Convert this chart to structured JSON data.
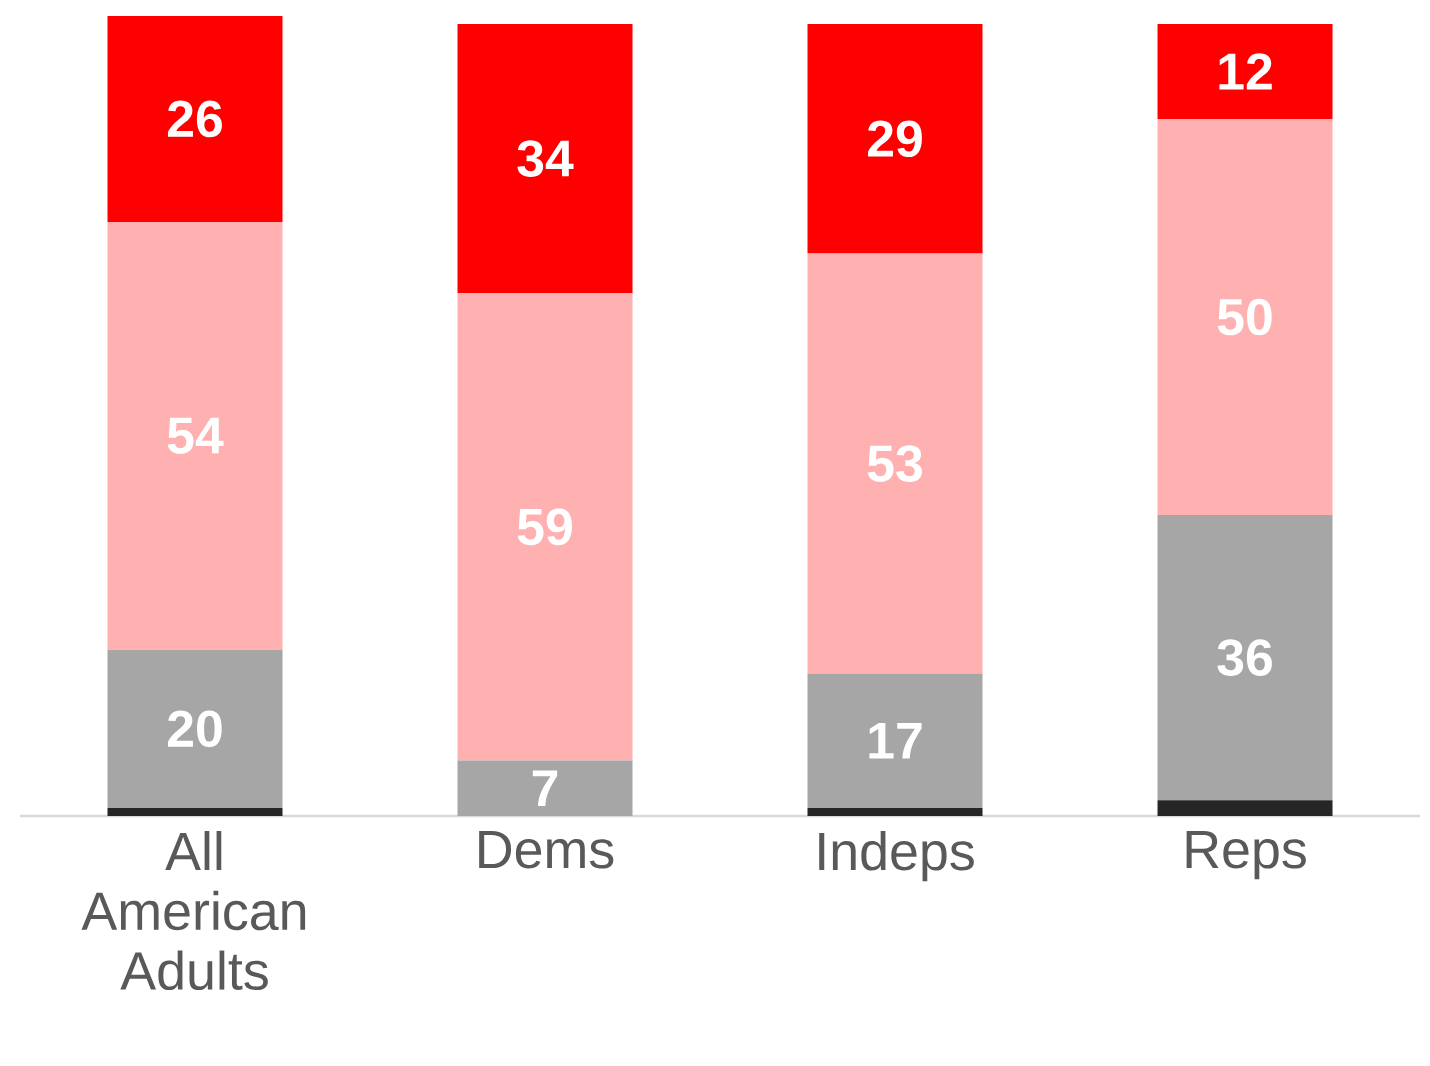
{
  "chart_data": {
    "type": "bar",
    "stacked": true,
    "tick_labels": "x",
    "categories": [
      "All American Adults",
      "Dems",
      "Indeps",
      "Reps"
    ],
    "series": [
      {
        "color": "#262626",
        "values": [
          1,
          0,
          1,
          2
        ]
      },
      {
        "color": "#a6a6a6",
        "values": [
          20,
          7,
          17,
          36
        ],
        "value_labels": [
          "20",
          "7",
          "17",
          "36"
        ]
      },
      {
        "color": "#ffb0b0",
        "values": [
          54,
          59,
          53,
          50
        ],
        "value_labels": [
          "54",
          "59",
          "53",
          "50"
        ]
      },
      {
        "color": "#ff0000",
        "values": [
          26,
          34,
          29,
          12
        ],
        "value_labels": [
          "26",
          "34",
          "29",
          "12"
        ]
      }
    ]
  }
}
